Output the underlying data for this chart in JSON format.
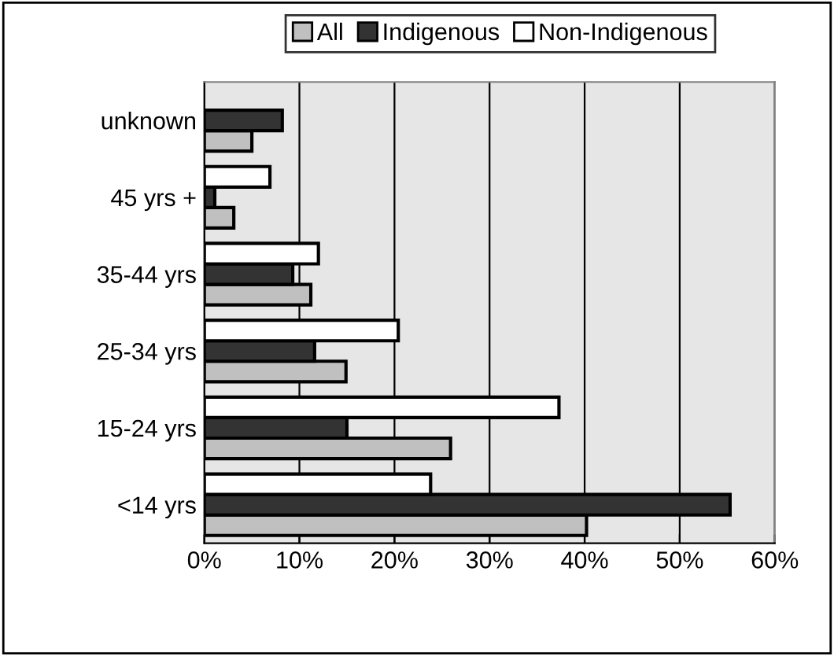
{
  "chart_data": {
    "type": "bar",
    "orientation": "horizontal",
    "categories": [
      "unknown",
      "45 yrs +",
      "35-44 yrs",
      "25-34 yrs",
      "15-24 yrs",
      "<14 yrs"
    ],
    "series": [
      {
        "name": "All",
        "color": "#c0c0c0",
        "values": [
          5.0,
          3.1,
          11.2,
          14.9,
          25.9,
          40.2
        ]
      },
      {
        "name": "Indigenous",
        "color": "#333333",
        "values": [
          8.2,
          1.1,
          9.3,
          11.6,
          15.0,
          55.3
        ]
      },
      {
        "name": "Non-Indigenous",
        "color": "#ffffff",
        "values": [
          null,
          6.9,
          12.0,
          20.4,
          37.3,
          23.8
        ]
      }
    ],
    "xlim": [
      0,
      60
    ],
    "xticks": [
      {
        "value": 0,
        "label": "0%"
      },
      {
        "value": 10,
        "label": "10%"
      },
      {
        "value": 20,
        "label": "20%"
      },
      {
        "value": 30,
        "label": "30%"
      },
      {
        "value": 40,
        "label": "40%"
      },
      {
        "value": 50,
        "label": "50%"
      },
      {
        "value": 60,
        "label": "60%"
      }
    ],
    "grid": "x",
    "legend": "top"
  }
}
